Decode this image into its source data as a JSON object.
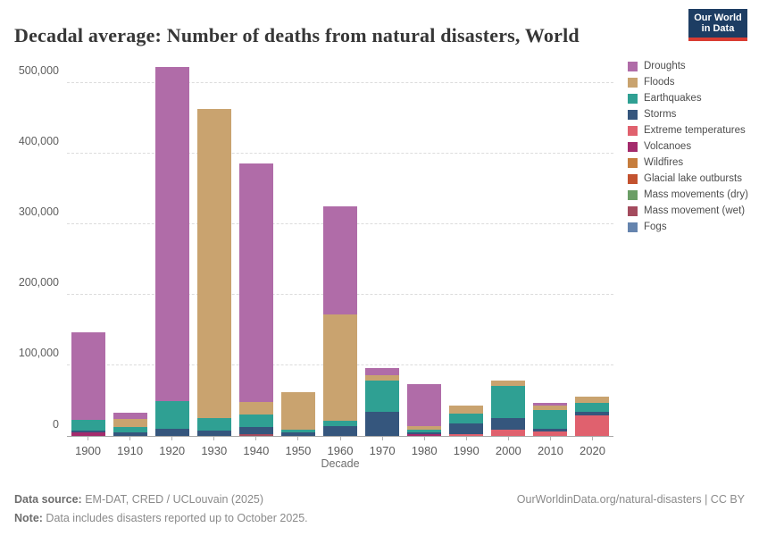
{
  "header": {
    "logo_line1": "Our World",
    "logo_line2": "in Data"
  },
  "chart_data": {
    "type": "bar",
    "stacked": true,
    "title": "Decadal average: Number of deaths from natural disasters, World",
    "xlabel": "Decade",
    "ylabel": "",
    "ylim": [
      0,
      500000
    ],
    "grid": "horizontal-dashed",
    "legend_position": "right",
    "ytick_values": [
      0,
      100000,
      200000,
      300000,
      400000,
      500000
    ],
    "ytick_labels": [
      "0",
      "100,000",
      "200,000",
      "300,000",
      "400,000",
      "500,000"
    ],
    "categories": [
      "1900",
      "1910",
      "1920",
      "1930",
      "1940",
      "1950",
      "1960",
      "1970",
      "1980",
      "1990",
      "2000",
      "2010",
      "2020"
    ],
    "series": [
      {
        "name": "Droughts",
        "color": "#b06ca8",
        "values": [
          124500,
          9000,
          473500,
          0,
          337500,
          0,
          153000,
          10500,
          60000,
          0,
          0,
          4000,
          0
        ]
      },
      {
        "name": "Floods",
        "color": "#c9a36f",
        "values": [
          0,
          11300,
          0,
          438800,
          17700,
          53500,
          151000,
          7600,
          5100,
          10700,
          7600,
          6300,
          8900
        ]
      },
      {
        "name": "Earthquakes",
        "color": "#2fa093",
        "values": [
          15000,
          7600,
          39600,
          16900,
          17700,
          3400,
          7200,
          43900,
          3800,
          14300,
          46000,
          26600,
          12600
        ]
      },
      {
        "name": "Storms",
        "color": "#35567d",
        "values": [
          2500,
          5100,
          10000,
          8000,
          10600,
          5100,
          13900,
          34600,
          2500,
          15200,
          16000,
          3800,
          5100
        ]
      },
      {
        "name": "Extreme temperatures",
        "color": "#e0616e",
        "values": [
          0,
          0,
          0,
          0,
          0,
          0,
          0,
          0,
          0,
          2500,
          8900,
          6300,
          29100
        ]
      },
      {
        "name": "Volcanoes",
        "color": "#a42b6c",
        "values": [
          5000,
          0,
          0,
          0,
          0,
          0,
          0,
          0,
          2500,
          0,
          0,
          0,
          0
        ]
      },
      {
        "name": "Wildfires",
        "color": "#c67d3d",
        "values": [
          0,
          0,
          0,
          0,
          0,
          0,
          0,
          0,
          0,
          0,
          0,
          0,
          0
        ]
      },
      {
        "name": "Glacial lake outbursts",
        "color": "#c3522f",
        "values": [
          0,
          0,
          0,
          0,
          0,
          0,
          0,
          0,
          0,
          0,
          0,
          0,
          0
        ]
      },
      {
        "name": "Mass movements (dry)",
        "color": "#6b9e66",
        "values": [
          0,
          0,
          0,
          0,
          0,
          0,
          0,
          0,
          0,
          0,
          0,
          0,
          0
        ]
      },
      {
        "name": "Mass movement (wet)",
        "color": "#a44b5e",
        "values": [
          0,
          0,
          0,
          0,
          2500,
          0,
          0,
          0,
          0,
          0,
          0,
          0,
          0
        ]
      },
      {
        "name": "Fogs",
        "color": "#6584ae",
        "values": [
          0,
          0,
          0,
          0,
          0,
          0,
          0,
          0,
          0,
          0,
          0,
          0,
          0
        ]
      }
    ]
  },
  "footer": {
    "source_label": "Data source:",
    "source_text": " EM-DAT, CRED / UCLouvain (2025)",
    "note_label": "Note:",
    "note_text": " Data includes disasters reported up to October 2025.",
    "rights": "OurWorldinData.org/natural-disasters | CC BY"
  }
}
